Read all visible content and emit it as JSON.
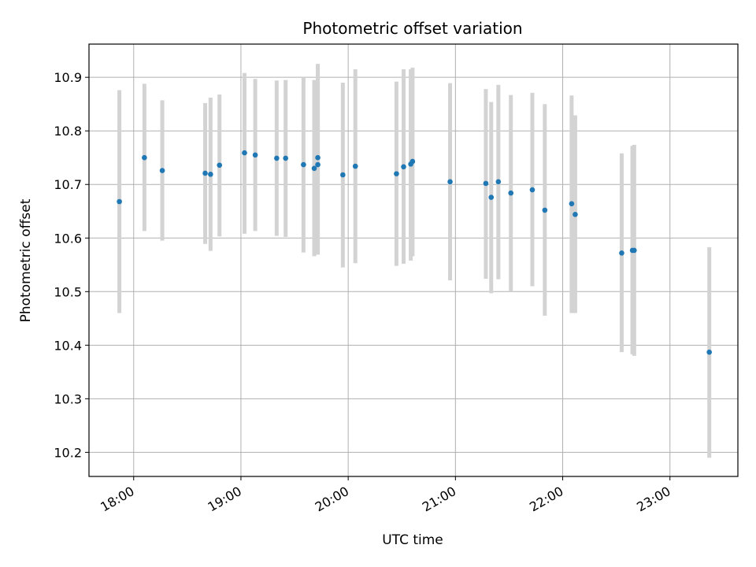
{
  "chart_data": {
    "type": "scatter",
    "title": "Photometric offset variation",
    "xlabel": "UTC time",
    "ylabel": "Photometric offset",
    "x_tick_labels": [
      "18:00",
      "19:00",
      "20:00",
      "21:00",
      "22:00",
      "23:00"
    ],
    "x_ticks": [
      "18:00",
      "19:00",
      "20:00",
      "21:00",
      "22:00",
      "23:00"
    ],
    "y_ticks": [
      10.2,
      10.3,
      10.4,
      10.5,
      10.6,
      10.7,
      10.8,
      10.9
    ],
    "xlim": [
      "17:35",
      "23:38"
    ],
    "ylim": [
      10.155,
      10.962
    ],
    "grid": true,
    "colors": {
      "point": "#1f77b4",
      "errorbar": "#d3d3d3",
      "grid": "#b0b0b0"
    },
    "series": [
      {
        "points": [
          {
            "x": "17:52",
            "y": 10.668,
            "ylow": 10.46,
            "yhigh": 10.876
          },
          {
            "x": "18:06",
            "y": 10.75,
            "ylow": 10.613,
            "yhigh": 10.888
          },
          {
            "x": "18:16",
            "y": 10.726,
            "ylow": 10.595,
            "yhigh": 10.857
          },
          {
            "x": "18:40",
            "y": 10.721,
            "ylow": 10.589,
            "yhigh": 10.852
          },
          {
            "x": "18:43",
            "y": 10.719,
            "ylow": 10.576,
            "yhigh": 10.862
          },
          {
            "x": "18:48",
            "y": 10.736,
            "ylow": 10.603,
            "yhigh": 10.868
          },
          {
            "x": "19:02",
            "y": 10.759,
            "ylow": 10.608,
            "yhigh": 10.908
          },
          {
            "x": "19:08",
            "y": 10.755,
            "ylow": 10.613,
            "yhigh": 10.897
          },
          {
            "x": "19:20",
            "y": 10.749,
            "ylow": 10.604,
            "yhigh": 10.894
          },
          {
            "x": "19:25",
            "y": 10.749,
            "ylow": 10.602,
            "yhigh": 10.895
          },
          {
            "x": "19:35",
            "y": 10.737,
            "ylow": 10.573,
            "yhigh": 10.9
          },
          {
            "x": "19:41",
            "y": 10.73,
            "ylow": 10.566,
            "yhigh": 10.895
          },
          {
            "x": "19:43",
            "y": 10.75,
            "ylow": 10.578,
            "yhigh": 10.925
          },
          {
            "x": "19:43",
            "y": 10.737,
            "ylow": 10.569,
            "yhigh": 10.905
          },
          {
            "x": "19:57",
            "y": 10.718,
            "ylow": 10.545,
            "yhigh": 10.89
          },
          {
            "x": "20:04",
            "y": 10.734,
            "ylow": 10.553,
            "yhigh": 10.915
          },
          {
            "x": "20:27",
            "y": 10.72,
            "ylow": 10.548,
            "yhigh": 10.892
          },
          {
            "x": "20:31",
            "y": 10.733,
            "ylow": 10.552,
            "yhigh": 10.915
          },
          {
            "x": "20:35",
            "y": 10.738,
            "ylow": 10.558,
            "yhigh": 10.915
          },
          {
            "x": "20:36",
            "y": 10.743,
            "ylow": 10.566,
            "yhigh": 10.918
          },
          {
            "x": "20:57",
            "y": 10.705,
            "ylow": 10.521,
            "yhigh": 10.889
          },
          {
            "x": "21:17",
            "y": 10.702,
            "ylow": 10.524,
            "yhigh": 10.878
          },
          {
            "x": "21:20",
            "y": 10.676,
            "ylow": 10.497,
            "yhigh": 10.854
          },
          {
            "x": "21:24",
            "y": 10.705,
            "ylow": 10.523,
            "yhigh": 10.886
          },
          {
            "x": "21:31",
            "y": 10.684,
            "ylow": 10.5,
            "yhigh": 10.867
          },
          {
            "x": "21:43",
            "y": 10.69,
            "ylow": 10.51,
            "yhigh": 10.871
          },
          {
            "x": "21:50",
            "y": 10.652,
            "ylow": 10.455,
            "yhigh": 10.85
          },
          {
            "x": "22:05",
            "y": 10.664,
            "ylow": 10.46,
            "yhigh": 10.866
          },
          {
            "x": "22:07",
            "y": 10.644,
            "ylow": 10.46,
            "yhigh": 10.829
          },
          {
            "x": "22:33",
            "y": 10.572,
            "ylow": 10.387,
            "yhigh": 10.758
          },
          {
            "x": "22:39",
            "y": 10.577,
            "ylow": 10.383,
            "yhigh": 10.772
          },
          {
            "x": "22:40",
            "y": 10.577,
            "ylow": 10.38,
            "yhigh": 10.774
          },
          {
            "x": "23:22",
            "y": 10.387,
            "ylow": 10.19,
            "yhigh": 10.583
          }
        ]
      }
    ]
  }
}
